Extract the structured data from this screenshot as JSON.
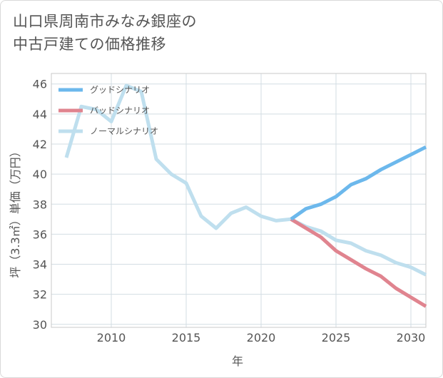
{
  "title_lines": [
    "山口県周南市みなみ銀座の",
    "中古戸建ての価格推移"
  ],
  "chart_data": {
    "type": "line",
    "xlabel": "年",
    "ylabel": "坪（3.3㎡）単価（万円）",
    "xlim": [
      2006,
      2031
    ],
    "ylim": [
      29.8,
      46.7
    ],
    "x_ticks": [
      2010,
      2015,
      2020,
      2025,
      2030
    ],
    "y_ticks": [
      30,
      32,
      34,
      36,
      38,
      40,
      42,
      44,
      46
    ],
    "grid": true,
    "legend_position": "top-left",
    "series": [
      {
        "name": "グッドシナリオ",
        "color": "#6cb8ec",
        "x": [
          2022,
          2023,
          2024,
          2025,
          2026,
          2027,
          2028,
          2029,
          2030,
          2031
        ],
        "y": [
          37.0,
          37.7,
          38.0,
          38.5,
          39.3,
          39.7,
          40.3,
          40.8,
          41.3,
          41.8
        ]
      },
      {
        "name": "バッドシナリオ",
        "color": "#e0848f",
        "x": [
          2022,
          2023,
          2024,
          2025,
          2026,
          2027,
          2028,
          2029,
          2030,
          2031
        ],
        "y": [
          37.0,
          36.4,
          35.8,
          34.9,
          34.3,
          33.7,
          33.2,
          32.4,
          31.8,
          31.2
        ]
      },
      {
        "name": "ノーマルシナリオ",
        "color": "#bfdfee",
        "x": [
          2007,
          2008,
          2009,
          2010,
          2011,
          2012,
          2013,
          2014,
          2015,
          2016,
          2017,
          2018,
          2019,
          2020,
          2021,
          2022,
          2023,
          2024,
          2025,
          2026,
          2027,
          2028,
          2029,
          2030,
          2031
        ],
        "y": [
          41.1,
          44.5,
          44.3,
          43.5,
          45.9,
          45.5,
          41.0,
          40.0,
          39.4,
          37.2,
          36.4,
          37.4,
          37.8,
          37.2,
          36.9,
          37.0,
          36.5,
          36.2,
          35.6,
          35.4,
          34.9,
          34.6,
          34.1,
          33.8,
          33.3
        ]
      }
    ]
  }
}
